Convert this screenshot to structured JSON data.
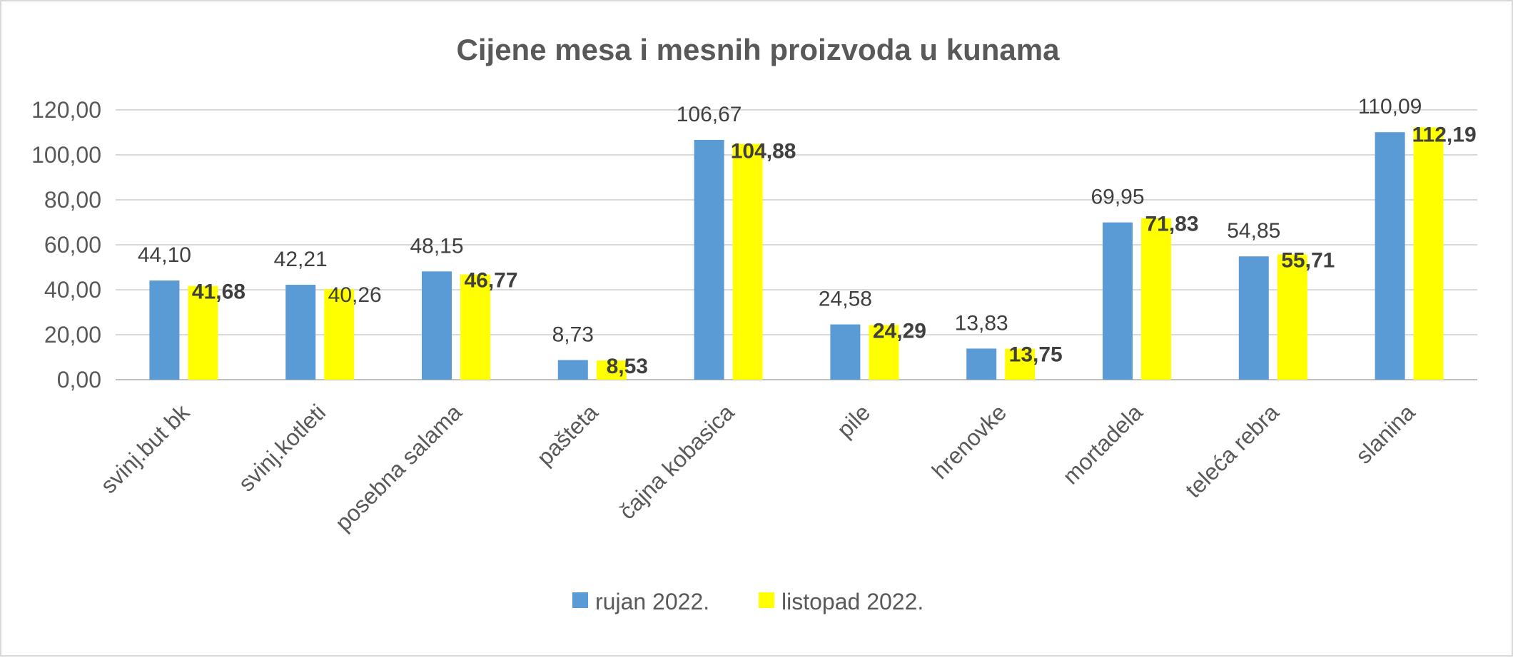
{
  "chart_data": {
    "type": "bar",
    "title": "Cijene mesa i mesnih proizvoda u kunama",
    "categories": [
      "svinj.but bk",
      "svinj.kotleti",
      "posebna salama",
      "pašteta",
      "čajna kobasica",
      "pile",
      "hrenovke",
      "mortadela",
      "teleća rebra",
      "slanina"
    ],
    "series": [
      {
        "name": "rujan 2022.",
        "color": "#5b9bd5",
        "values": [
          44.1,
          42.21,
          48.15,
          8.73,
          106.67,
          24.58,
          13.83,
          69.95,
          54.85,
          110.09
        ],
        "labels": [
          "44,10",
          "42,21",
          "48,15",
          "8,73",
          "106,67",
          "24,58",
          "13,83",
          "69,95",
          "54,85",
          "110,09"
        ],
        "labels_bold": false
      },
      {
        "name": "listopad 2022.",
        "color": "#ffff00",
        "values": [
          41.68,
          40.26,
          46.77,
          8.53,
          104.88,
          24.29,
          13.75,
          71.83,
          55.71,
          112.19
        ],
        "labels": [
          "41,68",
          "40,26",
          "46,77",
          "8,53",
          "104,88",
          "24,29",
          "13,75",
          "71,83",
          "55,71",
          "112,19"
        ],
        "labels_bold": [
          true,
          false,
          true,
          true,
          true,
          true,
          true,
          true,
          true,
          true
        ]
      }
    ],
    "yticks": [
      "0,00",
      "20,00",
      "40,00",
      "60,00",
      "80,00",
      "100,00",
      "120,00"
    ],
    "ylim": [
      0,
      120
    ],
    "ystep": 20,
    "grid": true,
    "legend_position": "bottom"
  }
}
